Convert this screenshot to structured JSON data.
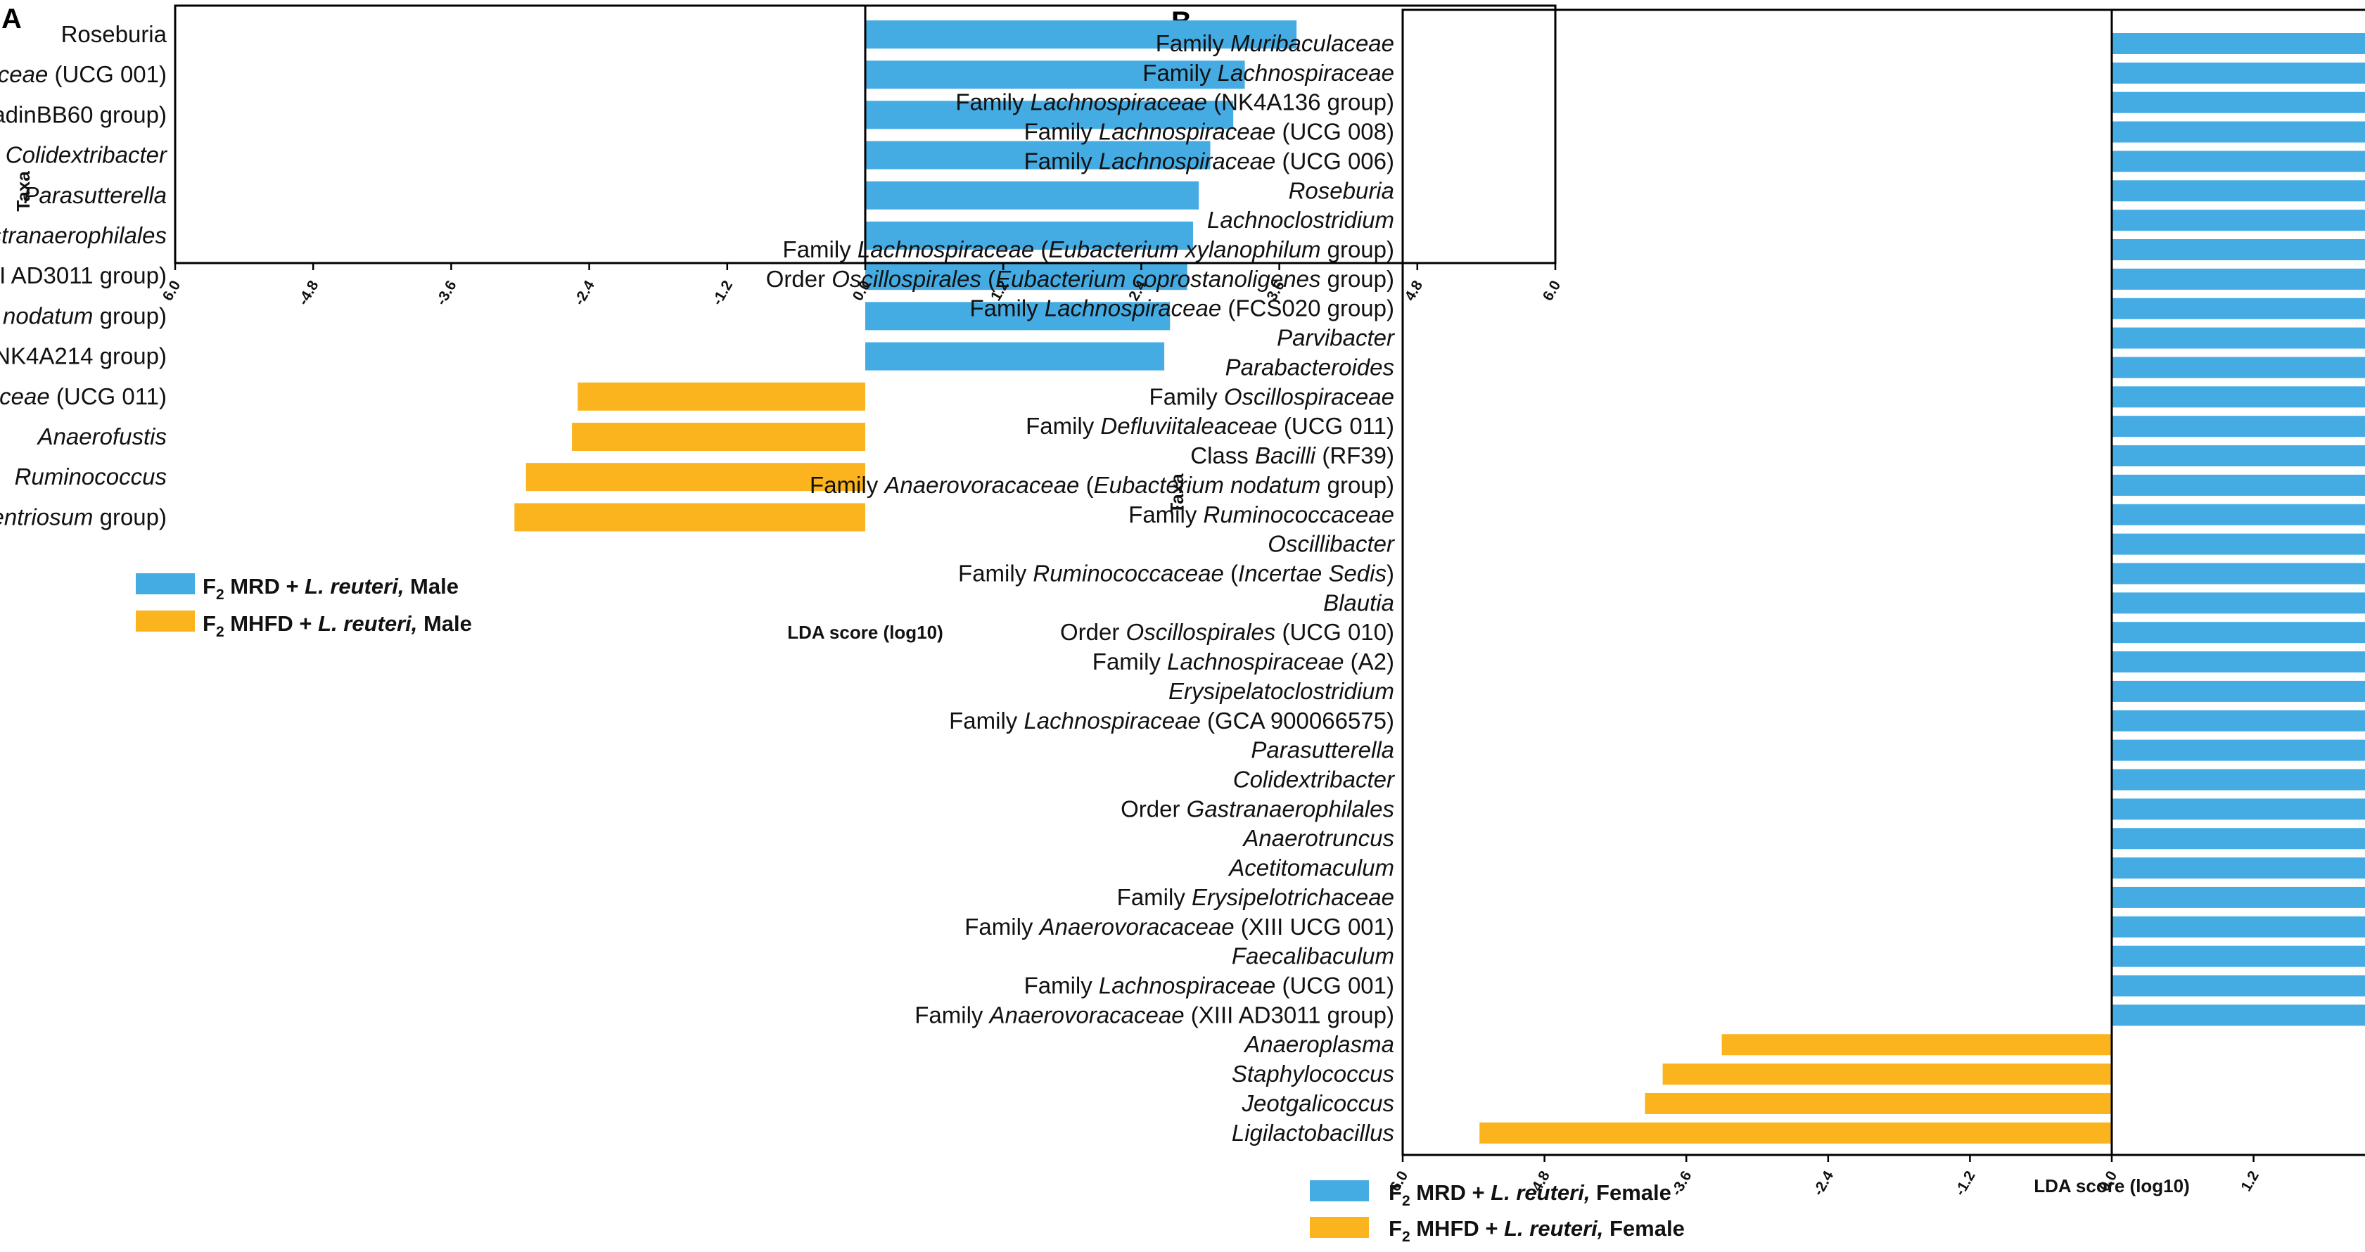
{
  "panels": {
    "A": {
      "label": "A"
    },
    "B": {
      "label": "B"
    }
  },
  "chart_data": [
    {
      "panel": "A",
      "type": "bar",
      "orientation": "horizontal",
      "ylabel": "Taxa",
      "xlabel": "LDA score (log10)",
      "xlim": [
        -6.0,
        6.0
      ],
      "xticks": [
        "6.0",
        "-4.8",
        "-3.6",
        "-2.4",
        "-1.2",
        "0.0",
        "1.2",
        "2.4",
        "3.6",
        "4.8",
        "6.0"
      ],
      "categories": [
        [
          {
            "t": "Roseburia",
            "i": false
          }
        ],
        [
          {
            "t": "Family ",
            "i": false
          },
          {
            "t": "Lachnospiraceae",
            "i": true
          },
          {
            "t": " (UCG 001)",
            "i": false
          }
        ],
        [
          {
            "t": "Class ",
            "i": false
          },
          {
            "t": "Clostridia",
            "i": true
          },
          {
            "t": " (vadinBB60 group)",
            "i": false
          }
        ],
        [
          {
            "t": "Colidextribacter",
            "i": true
          }
        ],
        [
          {
            "t": "Parasutterella",
            "i": true
          }
        ],
        [
          {
            "t": "Order ",
            "i": false
          },
          {
            "t": "Gastranaerophilales",
            "i": true
          }
        ],
        [
          {
            "t": "Family ",
            "i": false
          },
          {
            "t": "Anaerovoracaceae",
            "i": true
          },
          {
            "t": " (XIII AD3011 group)",
            "i": false
          }
        ],
        [
          {
            "t": "Family ",
            "i": false
          },
          {
            "t": "Anaerovoracaceae",
            "i": true
          },
          {
            "t": " (",
            "i": false
          },
          {
            "t": "Eubacterium nodatum",
            "i": true
          },
          {
            "t": " group)",
            "i": false
          }
        ],
        [
          {
            "t": "Family ",
            "i": false
          },
          {
            "t": "Oscillospiraceae",
            "i": true
          },
          {
            "t": " (NK4A214 group)",
            "i": false
          }
        ],
        [
          {
            "t": "Family ",
            "i": false
          },
          {
            "t": "Defluviitaleaceae",
            "i": true
          },
          {
            "t": " (UCG 011)",
            "i": false
          }
        ],
        [
          {
            "t": "Anaerofustis",
            "i": true
          }
        ],
        [
          {
            "t": "Ruminococcus",
            "i": true
          }
        ],
        [
          {
            "t": "Family ",
            "i": false
          },
          {
            "t": "Lachnospiraceae",
            "i": true
          },
          {
            "t": " (",
            "i": false
          },
          {
            "t": "Eubacterium ventriosum",
            "i": true
          },
          {
            "t": " group)",
            "i": false
          }
        ]
      ],
      "values": [
        3.75,
        3.3,
        3.2,
        3.0,
        2.9,
        2.85,
        2.8,
        2.65,
        2.6,
        -2.5,
        -2.55,
        -2.95,
        -3.05
      ],
      "legend": [
        {
          "color": "#45ACE3",
          "parts": [
            {
              "t": "F",
              "s": false
            },
            {
              "t": "2",
              "s": true
            },
            {
              "t": " MRD + ",
              "s": false
            },
            {
              "t": "L. reuteri,",
              "s": false,
              "i": true
            },
            {
              "t": " Male",
              "s": false
            }
          ]
        },
        {
          "color": "#FBB41E",
          "parts": [
            {
              "t": "F",
              "s": false
            },
            {
              "t": "2",
              "s": true
            },
            {
              "t": " MHFD + ",
              "s": false
            },
            {
              "t": "L. reuteri,",
              "s": false,
              "i": true
            },
            {
              "t": " Male",
              "s": false
            }
          ]
        }
      ]
    },
    {
      "panel": "B",
      "type": "bar",
      "orientation": "horizontal",
      "ylabel": "Taxa",
      "xlabel": "LDA score (log10)",
      "xlim": [
        -6.0,
        6.0
      ],
      "xticks": [
        "6.0",
        "-4.8",
        "-3.6",
        "-2.4",
        "-1.2",
        "0.0",
        "1.2",
        "2.4",
        "3.6",
        "4.8",
        "6.0"
      ],
      "categories": [
        [
          {
            "t": "Family ",
            "i": false
          },
          {
            "t": "Muribaculaceae",
            "i": true
          }
        ],
        [
          {
            "t": "Family ",
            "i": false
          },
          {
            "t": "Lachnospiraceae",
            "i": true
          }
        ],
        [
          {
            "t": "Family ",
            "i": false
          },
          {
            "t": "Lachnospiraceae",
            "i": true
          },
          {
            "t": " (NK4A136 group)",
            "i": false
          }
        ],
        [
          {
            "t": "Family ",
            "i": false
          },
          {
            "t": "Lachnospiraceae",
            "i": true
          },
          {
            "t": " (UCG 008)",
            "i": false
          }
        ],
        [
          {
            "t": "Family ",
            "i": false
          },
          {
            "t": "Lachnospiraceae",
            "i": true
          },
          {
            "t": " (UCG 006)",
            "i": false
          }
        ],
        [
          {
            "t": "Roseburia",
            "i": true
          }
        ],
        [
          {
            "t": "Lachnoclostridium",
            "i": true
          }
        ],
        [
          {
            "t": "Family ",
            "i": false
          },
          {
            "t": "Lachnospiraceae",
            "i": true
          },
          {
            "t": " (",
            "i": false
          },
          {
            "t": "Eubacterium xylanophilum",
            "i": true
          },
          {
            "t": " group)",
            "i": false
          }
        ],
        [
          {
            "t": "Order ",
            "i": false
          },
          {
            "t": "Oscillospirales",
            "i": true
          },
          {
            "t": " (",
            "i": false
          },
          {
            "t": "Eubacterium coprostanoligenes",
            "i": true
          },
          {
            "t": " group)",
            "i": false
          }
        ],
        [
          {
            "t": "Family ",
            "i": false
          },
          {
            "t": "Lachnospiraceae",
            "i": true
          },
          {
            "t": " (FCS020 group)",
            "i": false
          }
        ],
        [
          {
            "t": "Parvibacter",
            "i": true
          }
        ],
        [
          {
            "t": "Parabacteroides",
            "i": true
          }
        ],
        [
          {
            "t": "Family ",
            "i": false
          },
          {
            "t": "Oscillospiraceae",
            "i": true
          }
        ],
        [
          {
            "t": "Family ",
            "i": false
          },
          {
            "t": "Defluviitaleaceae",
            "i": true
          },
          {
            "t": " (UCG 011)",
            "i": false
          }
        ],
        [
          {
            "t": "Class ",
            "i": false
          },
          {
            "t": "Bacilli",
            "i": true
          },
          {
            "t": " (RF39)",
            "i": false
          }
        ],
        [
          {
            "t": "Family ",
            "i": false
          },
          {
            "t": "Anaerovoracaceae",
            "i": true
          },
          {
            "t": " (",
            "i": false
          },
          {
            "t": "Eubacterium nodatum",
            "i": true
          },
          {
            "t": " group)",
            "i": false
          }
        ],
        [
          {
            "t": "Family ",
            "i": false
          },
          {
            "t": "Ruminococcaceae",
            "i": true
          }
        ],
        [
          {
            "t": "Oscillibacter",
            "i": true
          }
        ],
        [
          {
            "t": "Family ",
            "i": false
          },
          {
            "t": "Ruminococcaceae",
            "i": true
          },
          {
            "t": " (",
            "i": false
          },
          {
            "t": "Incertae Sedis",
            "i": true
          },
          {
            "t": ")",
            "i": false
          }
        ],
        [
          {
            "t": "Blautia",
            "i": true
          }
        ],
        [
          {
            "t": "Order ",
            "i": false
          },
          {
            "t": "Oscillospirales",
            "i": true
          },
          {
            "t": " (UCG 010)",
            "i": false
          }
        ],
        [
          {
            "t": "Family ",
            "i": false
          },
          {
            "t": "Lachnospiraceae",
            "i": true
          },
          {
            "t": " (A2)",
            "i": false
          }
        ],
        [
          {
            "t": "Erysipelatoclostridium",
            "i": true
          }
        ],
        [
          {
            "t": "Family ",
            "i": false
          },
          {
            "t": "Lachnospiraceae",
            "i": true
          },
          {
            "t": " (GCA 900066575)",
            "i": false
          }
        ],
        [
          {
            "t": "Parasutterella",
            "i": true
          }
        ],
        [
          {
            "t": "Colidextribacter",
            "i": true
          }
        ],
        [
          {
            "t": "Order ",
            "i": false
          },
          {
            "t": "Gastranaerophilales",
            "i": true
          }
        ],
        [
          {
            "t": "Anaerotruncus",
            "i": true
          }
        ],
        [
          {
            "t": "Acetitomaculum",
            "i": true
          }
        ],
        [
          {
            "t": "Family ",
            "i": false
          },
          {
            "t": "Erysipelotrichaceae",
            "i": true
          }
        ],
        [
          {
            "t": "Family ",
            "i": false
          },
          {
            "t": "Anaerovoracaceae",
            "i": true
          },
          {
            "t": " (XIII UCG 001)",
            "i": false
          }
        ],
        [
          {
            "t": "Faecalibaculum",
            "i": true
          }
        ],
        [
          {
            "t": "Family ",
            "i": false
          },
          {
            "t": "Lachnospiraceae",
            "i": true
          },
          {
            "t": " (UCG 001)",
            "i": false
          }
        ],
        [
          {
            "t": "Family ",
            "i": false
          },
          {
            "t": "Anaerovoracaceae",
            "i": true
          },
          {
            "t": " (XIII AD3011 group)",
            "i": false
          }
        ],
        [
          {
            "t": "Anaeroplasma",
            "i": true
          }
        ],
        [
          {
            "t": "Staphylococcus",
            "i": true
          }
        ],
        [
          {
            "t": "Jeotgalicoccus",
            "i": true
          }
        ],
        [
          {
            "t": "Ligilactobacillus",
            "i": true
          }
        ]
      ],
      "values": [
        4.95,
        4.45,
        4.2,
        4.15,
        4.05,
        3.95,
        3.9,
        3.8,
        3.7,
        3.65,
        3.6,
        3.4,
        3.35,
        3.32,
        3.3,
        3.3,
        3.28,
        3.27,
        3.25,
        3.25,
        3.22,
        3.2,
        3.15,
        3.12,
        3.1,
        3.08,
        3.07,
        3.05,
        3.03,
        3.0,
        3.0,
        2.98,
        2.96,
        2.9,
        -3.3,
        -3.8,
        -3.95,
        -5.35
      ],
      "legend": [
        {
          "color": "#45ACE3",
          "parts": [
            {
              "t": "F",
              "s": false
            },
            {
              "t": "2",
              "s": true
            },
            {
              "t": " MRD + ",
              "s": false
            },
            {
              "t": "L. reuteri,",
              "s": false,
              "i": true
            },
            {
              "t": " Female",
              "s": false
            }
          ]
        },
        {
          "color": "#FBB41E",
          "parts": [
            {
              "t": "F",
              "s": false
            },
            {
              "t": "2",
              "s": true
            },
            {
              "t": " MHFD + ",
              "s": false
            },
            {
              "t": "L. reuteri,",
              "s": false,
              "i": true
            },
            {
              "t": " Female",
              "s": false
            }
          ]
        }
      ]
    }
  ]
}
